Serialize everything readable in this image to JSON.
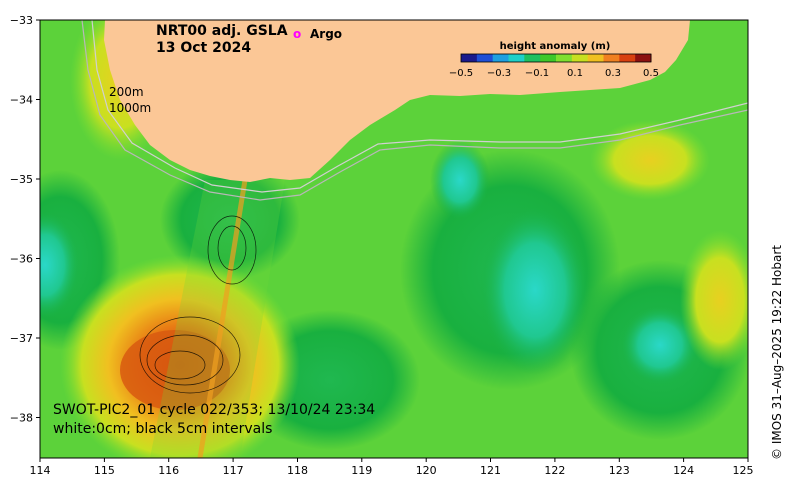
{
  "title": {
    "product": "NRT00 adj. GSLA",
    "date": "13 Oct 2024"
  },
  "legend": {
    "argo_marker": "o",
    "argo_label": "Argo",
    "argo_color": "#ff00ff"
  },
  "colorbar": {
    "title": "height anomaly (m)",
    "ticks": [
      "−0.5",
      "−0.3",
      "−0.1",
      "0.1",
      "0.3",
      "0.5"
    ],
    "colors": [
      "#1a1a8c",
      "#1f4fd6",
      "#1fa0e0",
      "#1fd0c8",
      "#1fc060",
      "#3ec82a",
      "#7fe030",
      "#c8e020",
      "#f0c020",
      "#f08020",
      "#d84010",
      "#8c1010"
    ]
  },
  "isobaths": {
    "label_200": "200m",
    "label_1000": "1000m"
  },
  "swot": {
    "line1": "SWOT-PIC2_01 cycle 022/353; 13/10/24 23:34",
    "line2": "white:0cm; black 5cm intervals"
  },
  "axes": {
    "x_ticks": [
      "114",
      "115",
      "116",
      "117",
      "118",
      "119",
      "120",
      "121",
      "122",
      "123",
      "124",
      "125"
    ],
    "y_ticks": [
      "−33",
      "−34",
      "−35",
      "−36",
      "−37",
      "−38"
    ]
  },
  "credit": "©  IMOS 31–Aug–2025 19:22 Hobart",
  "colors": {
    "land": "#fbc796",
    "field_base": "#5cd23a",
    "field_dark": "#19b03f",
    "field_teal": "#20c890",
    "field_cyan": "#2ad8c8",
    "field_yellow": "#d8e020",
    "field_orange": "#f0a020",
    "field_red": "#d85010"
  }
}
